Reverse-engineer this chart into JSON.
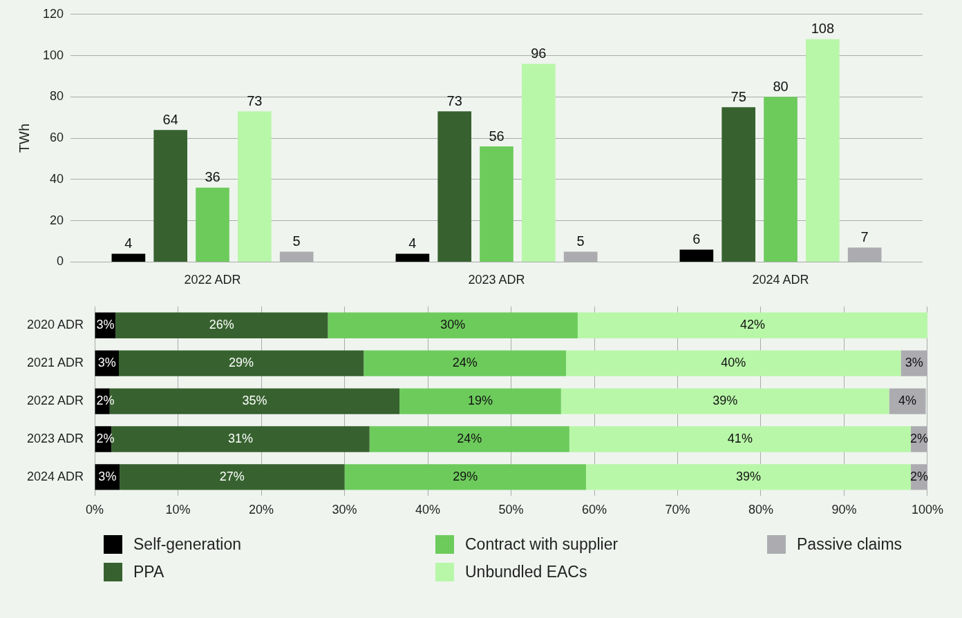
{
  "chart_data": [
    {
      "type": "bar",
      "ylabel": "TWh",
      "categories": [
        "2022 ADR",
        "2023 ADR",
        "2024 ADR"
      ],
      "ylim": [
        0,
        120
      ],
      "yticks": [
        0,
        20,
        40,
        60,
        80,
        100,
        120
      ],
      "grid": "y",
      "legend": false,
      "data_labels": true,
      "series": [
        {
          "color": "#000000",
          "values": [
            4,
            4,
            6
          ]
        },
        {
          "color": "#37622f",
          "values": [
            64,
            73,
            75
          ]
        },
        {
          "color": "#6dcb5c",
          "values": [
            36,
            56,
            80
          ]
        },
        {
          "color": "#b8f7a8",
          "values": [
            73,
            96,
            108
          ]
        },
        {
          "color": "#acacb0",
          "values": [
            5,
            5,
            7
          ]
        }
      ]
    },
    {
      "type": "bar",
      "orientation": "horizontal",
      "stacked": true,
      "categories": [
        "2020 ADR",
        "2021 ADR",
        "2022 ADR",
        "2023 ADR",
        "2024 ADR"
      ],
      "xlim": [
        0,
        100
      ],
      "xticks": [
        {
          "value": 0,
          "label": "0%"
        },
        {
          "value": 10,
          "label": "10%"
        },
        {
          "value": 20,
          "label": "20%"
        },
        {
          "value": 30,
          "label": "30%"
        },
        {
          "value": 40,
          "label": "40%"
        },
        {
          "value": 50,
          "label": "50%"
        },
        {
          "value": 60,
          "label": "60%"
        },
        {
          "value": 70,
          "label": "70%"
        },
        {
          "value": 80,
          "label": "80%"
        },
        {
          "value": 90,
          "label": "90%"
        },
        {
          "value": 100,
          "label": "100%"
        }
      ],
      "grid": "x",
      "legend": "bottom",
      "series": [
        {
          "name": "Self-generation",
          "color": "#000000",
          "values": [
            2.5,
            2.9,
            1.8,
            2,
            3
          ],
          "value_labels": [
            "3%",
            "3%",
            "2%",
            "2%",
            "3%"
          ]
        },
        {
          "name": "PPA",
          "color": "#37622f",
          "values": [
            25.5,
            29.4,
            34.8,
            31,
            27
          ],
          "value_labels": [
            "26%",
            "29%",
            "35%",
            "31%",
            "27%"
          ]
        },
        {
          "name": "Contract with supplier",
          "color": "#6dcb5c",
          "values": [
            30,
            24.3,
            19.4,
            24,
            29
          ],
          "value_labels": [
            "30%",
            "24%",
            "19%",
            "24%",
            "29%"
          ]
        },
        {
          "name": "Unbundled EACs",
          "color": "#b8f7a8",
          "values": [
            42,
            40.2,
            39.4,
            41,
            39
          ],
          "value_labels": [
            "42%",
            "40%",
            "39%",
            "41%",
            "39%"
          ]
        },
        {
          "name": "Passive claims",
          "color": "#acacb0",
          "values": [
            null,
            3.2,
            4.4,
            2,
            2
          ],
          "value_labels": [
            null,
            "3%",
            "4%",
            "2%",
            "2%"
          ]
        }
      ]
    }
  ]
}
